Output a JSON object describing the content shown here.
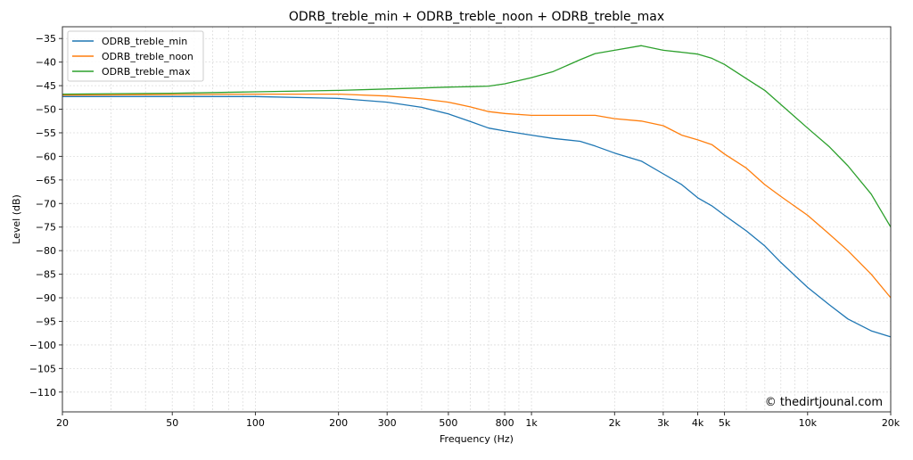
{
  "chart_data": {
    "type": "line",
    "title": "ODRB_treble_min + ODRB_treble_noon + ODRB_treble_max",
    "xlabel": "Frequency (Hz)",
    "ylabel": "Level (dB)",
    "xscale": "log",
    "xlim": [
      20,
      20000
    ],
    "ylim": [
      -114.2,
      -32.5
    ],
    "grid": true,
    "legend": "top-left",
    "watermark": "© thedirtjounal.com",
    "xticks": [
      20,
      50,
      100,
      200,
      300,
      500,
      800,
      1000,
      2000,
      3000,
      4000,
      5000,
      10000,
      20000
    ],
    "xtick_labels": [
      "20",
      "50",
      "100",
      "200",
      "300",
      "500",
      "800",
      "1k",
      "2k",
      "3k",
      "4k",
      "5k",
      "10k",
      "20k"
    ],
    "yticks": [
      -35,
      -40,
      -45,
      -50,
      -55,
      -60,
      -65,
      -70,
      -75,
      -80,
      -85,
      -90,
      -95,
      -100,
      -105,
      -110
    ],
    "ytick_labels": [
      "−35",
      "−40",
      "−45",
      "−50",
      "−55",
      "−60",
      "−65",
      "−70",
      "−75",
      "−80",
      "−85",
      "−90",
      "−95",
      "−100",
      "−105",
      "−110"
    ],
    "x": [
      20,
      50,
      100,
      200,
      300,
      400,
      500,
      600,
      700,
      800,
      1000,
      1200,
      1500,
      1700,
      2000,
      2500,
      3000,
      3500,
      4000,
      4500,
      5000,
      6000,
      7000,
      8000,
      10000,
      12000,
      14000,
      17000,
      20000
    ],
    "series": [
      {
        "name": "ODRB_treble_min",
        "color": "#1f77b4",
        "values": [
          -47.3,
          -47.3,
          -47.3,
          -47.7,
          -48.5,
          -49.6,
          -51.0,
          -52.6,
          -54.0,
          -54.6,
          -55.5,
          -56.2,
          -56.8,
          -57.8,
          -59.3,
          -61.0,
          -63.7,
          -66.0,
          -68.8,
          -70.5,
          -72.5,
          -75.8,
          -79.0,
          -82.5,
          -87.8,
          -91.5,
          -94.5,
          -97.0,
          -98.3
        ]
      },
      {
        "name": "ODRB_treble_noon",
        "color": "#ff7f0e",
        "values": [
          -47.0,
          -46.9,
          -46.8,
          -46.8,
          -47.2,
          -47.8,
          -48.5,
          -49.5,
          -50.5,
          -50.9,
          -51.3,
          -51.3,
          -51.3,
          -51.3,
          -52.0,
          -52.5,
          -53.5,
          -55.5,
          -56.5,
          -57.5,
          -59.5,
          -62.5,
          -66.0,
          -68.5,
          -72.5,
          -76.5,
          -80.0,
          -85.0,
          -90.0
        ]
      },
      {
        "name": "ODRB_treble_max",
        "color": "#2ca02c",
        "values": [
          -46.8,
          -46.6,
          -46.3,
          -46.0,
          -45.7,
          -45.5,
          -45.3,
          -45.2,
          -45.1,
          -44.6,
          -43.3,
          -42.0,
          -39.5,
          -38.2,
          -37.5,
          -36.5,
          -37.5,
          -37.9,
          -38.3,
          -39.2,
          -40.5,
          -43.5,
          -46.0,
          -49.0,
          -54.0,
          -58.0,
          -62.0,
          -68.0,
          -75.0
        ]
      }
    ]
  }
}
